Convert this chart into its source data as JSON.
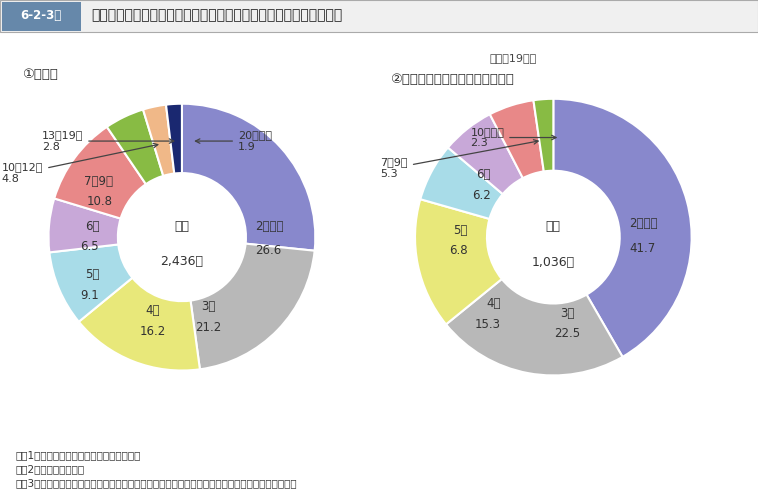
{
  "title": "裁判員裁判対象事件の第一審終局総人員における開廷回数別構成比",
  "header_label": "6-2-3図",
  "year_label": "（平成19年）",
  "chart1_title": "①　全体",
  "chart2_title": "②　公判前整理手続に付された者",
  "chart1_center_line1": "総数",
  "chart1_center_line2": "2,436人",
  "chart2_center_line1": "総数",
  "chart2_center_line2": "1,036人",
  "notes": [
    "注　1　最高裁判所事務総局の資料による。",
    "　　2　移送等を含む。",
    "　　3　同一被告人につき複数の起訴があっても，弁論が併合されている限り１人として計上した。"
  ],
  "chart1_values": [
    26.6,
    21.2,
    16.2,
    9.1,
    6.5,
    10.8,
    4.8,
    2.8,
    1.9
  ],
  "chart1_colors": [
    "#8888cc",
    "#b8b8b8",
    "#e8e87a",
    "#a8dce8",
    "#c8a8d8",
    "#e88888",
    "#88bb44",
    "#f0b888",
    "#1a2870"
  ],
  "chart1_labels": [
    "2回以下",
    "3回",
    "4回",
    "5回",
    "6回",
    "7～9回",
    "10～12回",
    "13～19回",
    "20回以上"
  ],
  "chart2_values": [
    41.7,
    22.5,
    15.3,
    6.8,
    6.2,
    5.3,
    2.3
  ],
  "chart2_colors": [
    "#8888cc",
    "#b8b8b8",
    "#e8e87a",
    "#a8dce8",
    "#c8a8d8",
    "#e88888",
    "#88bb44"
  ],
  "chart2_labels": [
    "2回以下",
    "3回",
    "4回",
    "5回",
    "6回",
    "7～9回",
    "10回以上"
  ],
  "background_color": "#ffffff",
  "header_bg": "#6688aa",
  "header_text_bg": "#f0f0f0"
}
